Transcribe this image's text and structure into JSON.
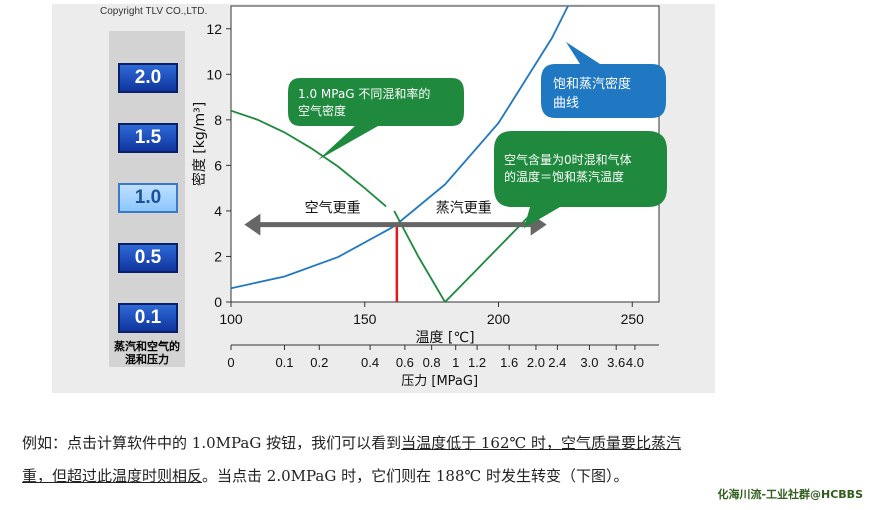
{
  "copyright": "Copyright TLV CO.,LTD.",
  "pressure_buttons": [
    "2.0",
    "1.5",
    "1.0",
    "0.5",
    "0.1"
  ],
  "active_button": "1.0",
  "sidebar_label_line1": "蒸汽和空气的",
  "sidebar_label_line2": "混和压力",
  "chart_data": {
    "type": "line",
    "xlabel": "温度 [℃]",
    "ylabel": "密度 [kg/m³]",
    "xlim": [
      100,
      260
    ],
    "ylim": [
      0,
      13
    ],
    "x_ticks": [
      100,
      150,
      200,
      250
    ],
    "y_ticks": [
      0,
      2,
      4,
      6,
      8,
      10,
      12
    ],
    "secondary_axis_label": "压力 [MPaG]",
    "secondary_ticks": [
      {
        "label": "0",
        "t": 100
      },
      {
        "label": "0.1",
        "t": 120
      },
      {
        "label": "0.2",
        "t": 133
      },
      {
        "label": "0.4",
        "t": 152
      },
      {
        "label": "0.6",
        "t": 165
      },
      {
        "label": "0.8",
        "t": 175
      },
      {
        "label": "1",
        "t": 184
      },
      {
        "label": "1.2",
        "t": 192
      },
      {
        "label": "1.6",
        "t": 204
      },
      {
        "label": "2.0",
        "t": 214
      },
      {
        "label": "2.4",
        "t": 222
      },
      {
        "label": "3.0",
        "t": 234
      },
      {
        "label": "3.6",
        "t": 244
      },
      {
        "label": "4.0",
        "t": 251
      }
    ],
    "series": [
      {
        "color": "#1f78c1",
        "x": [
          100,
          120,
          140,
          160,
          162,
          180,
          200,
          220,
          226
        ],
        "y": [
          0.6,
          1.12,
          1.97,
          3.26,
          3.42,
          5.16,
          7.86,
          11.6,
          13
        ]
      },
      {
        "color": "#1c8a3c",
        "x": [
          100,
          110,
          120,
          130,
          140,
          150,
          158
        ],
        "y": [
          8.4,
          8.0,
          7.45,
          6.75,
          5.95,
          5.0,
          4.2
        ]
      },
      {
        "color": "#1c8a3c",
        "x": [
          161,
          170,
          180
        ],
        "y": [
          4.0,
          2.0,
          0.0
        ]
      },
      {
        "color": "#1c8a3c",
        "x": [
          180,
          190,
          200,
          210,
          220
        ],
        "y": [
          0.0,
          1.2,
          2.4,
          3.6,
          4.8
        ]
      }
    ],
    "marker_temperature": 162,
    "marker_density": 3.42,
    "arrow_y": 3.4,
    "arrow_from": 105,
    "arrow_to": 218,
    "annotations": {
      "air_heavier": "空气更重",
      "steam_heavier": "蒸汽更重",
      "bubble_green1_line1": "1.0 MPaG 不同混和率的",
      "bubble_green1_line2": "空气密度",
      "bubble_blue_line1": "饱和蒸汽密度",
      "bubble_blue_line2": "曲线",
      "bubble_green2_line1": "空气含量为0时混和气体",
      "bubble_green2_line2": "的温度＝饱和蒸汽温度"
    }
  },
  "paragraph": {
    "line1_part1": "例如：点击计算软件中的 1.0MPaG 按钮，我们可以看到",
    "line1_underlined": "当温度低于 162℃ 时，空气质量要比蒸汽",
    "line2_underlined": "重，但超过此温度时则相反",
    "line2_part2": "。当点击 2.0MPaG 时，它们则在 188℃ 时发生转变（下图）。"
  },
  "watermark": "化海川流-工业社群@HCBBS"
}
